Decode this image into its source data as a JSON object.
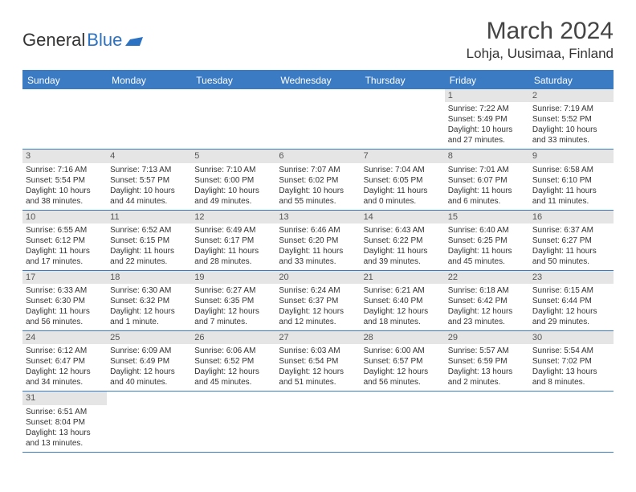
{
  "logo": {
    "general": "General",
    "blue": "Blue"
  },
  "title": "March 2024",
  "location": "Lohja, Uusimaa, Finland",
  "colors": {
    "header_bg": "#3b7bc4",
    "header_text": "#ffffff",
    "date_bg": "#e5e5e5",
    "border": "#3b7bc4",
    "logo_blue": "#2b72c2"
  },
  "day_headers": [
    "Sunday",
    "Monday",
    "Tuesday",
    "Wednesday",
    "Thursday",
    "Friday",
    "Saturday"
  ],
  "weeks": [
    [
      null,
      null,
      null,
      null,
      null,
      {
        "d": "1",
        "sr": "Sunrise: 7:22 AM",
        "ss": "Sunset: 5:49 PM",
        "dl": "Daylight: 10 hours and 27 minutes."
      },
      {
        "d": "2",
        "sr": "Sunrise: 7:19 AM",
        "ss": "Sunset: 5:52 PM",
        "dl": "Daylight: 10 hours and 33 minutes."
      }
    ],
    [
      {
        "d": "3",
        "sr": "Sunrise: 7:16 AM",
        "ss": "Sunset: 5:54 PM",
        "dl": "Daylight: 10 hours and 38 minutes."
      },
      {
        "d": "4",
        "sr": "Sunrise: 7:13 AM",
        "ss": "Sunset: 5:57 PM",
        "dl": "Daylight: 10 hours and 44 minutes."
      },
      {
        "d": "5",
        "sr": "Sunrise: 7:10 AM",
        "ss": "Sunset: 6:00 PM",
        "dl": "Daylight: 10 hours and 49 minutes."
      },
      {
        "d": "6",
        "sr": "Sunrise: 7:07 AM",
        "ss": "Sunset: 6:02 PM",
        "dl": "Daylight: 10 hours and 55 minutes."
      },
      {
        "d": "7",
        "sr": "Sunrise: 7:04 AM",
        "ss": "Sunset: 6:05 PM",
        "dl": "Daylight: 11 hours and 0 minutes."
      },
      {
        "d": "8",
        "sr": "Sunrise: 7:01 AM",
        "ss": "Sunset: 6:07 PM",
        "dl": "Daylight: 11 hours and 6 minutes."
      },
      {
        "d": "9",
        "sr": "Sunrise: 6:58 AM",
        "ss": "Sunset: 6:10 PM",
        "dl": "Daylight: 11 hours and 11 minutes."
      }
    ],
    [
      {
        "d": "10",
        "sr": "Sunrise: 6:55 AM",
        "ss": "Sunset: 6:12 PM",
        "dl": "Daylight: 11 hours and 17 minutes."
      },
      {
        "d": "11",
        "sr": "Sunrise: 6:52 AM",
        "ss": "Sunset: 6:15 PM",
        "dl": "Daylight: 11 hours and 22 minutes."
      },
      {
        "d": "12",
        "sr": "Sunrise: 6:49 AM",
        "ss": "Sunset: 6:17 PM",
        "dl": "Daylight: 11 hours and 28 minutes."
      },
      {
        "d": "13",
        "sr": "Sunrise: 6:46 AM",
        "ss": "Sunset: 6:20 PM",
        "dl": "Daylight: 11 hours and 33 minutes."
      },
      {
        "d": "14",
        "sr": "Sunrise: 6:43 AM",
        "ss": "Sunset: 6:22 PM",
        "dl": "Daylight: 11 hours and 39 minutes."
      },
      {
        "d": "15",
        "sr": "Sunrise: 6:40 AM",
        "ss": "Sunset: 6:25 PM",
        "dl": "Daylight: 11 hours and 45 minutes."
      },
      {
        "d": "16",
        "sr": "Sunrise: 6:37 AM",
        "ss": "Sunset: 6:27 PM",
        "dl": "Daylight: 11 hours and 50 minutes."
      }
    ],
    [
      {
        "d": "17",
        "sr": "Sunrise: 6:33 AM",
        "ss": "Sunset: 6:30 PM",
        "dl": "Daylight: 11 hours and 56 minutes."
      },
      {
        "d": "18",
        "sr": "Sunrise: 6:30 AM",
        "ss": "Sunset: 6:32 PM",
        "dl": "Daylight: 12 hours and 1 minute."
      },
      {
        "d": "19",
        "sr": "Sunrise: 6:27 AM",
        "ss": "Sunset: 6:35 PM",
        "dl": "Daylight: 12 hours and 7 minutes."
      },
      {
        "d": "20",
        "sr": "Sunrise: 6:24 AM",
        "ss": "Sunset: 6:37 PM",
        "dl": "Daylight: 12 hours and 12 minutes."
      },
      {
        "d": "21",
        "sr": "Sunrise: 6:21 AM",
        "ss": "Sunset: 6:40 PM",
        "dl": "Daylight: 12 hours and 18 minutes."
      },
      {
        "d": "22",
        "sr": "Sunrise: 6:18 AM",
        "ss": "Sunset: 6:42 PM",
        "dl": "Daylight: 12 hours and 23 minutes."
      },
      {
        "d": "23",
        "sr": "Sunrise: 6:15 AM",
        "ss": "Sunset: 6:44 PM",
        "dl": "Daylight: 12 hours and 29 minutes."
      }
    ],
    [
      {
        "d": "24",
        "sr": "Sunrise: 6:12 AM",
        "ss": "Sunset: 6:47 PM",
        "dl": "Daylight: 12 hours and 34 minutes."
      },
      {
        "d": "25",
        "sr": "Sunrise: 6:09 AM",
        "ss": "Sunset: 6:49 PM",
        "dl": "Daylight: 12 hours and 40 minutes."
      },
      {
        "d": "26",
        "sr": "Sunrise: 6:06 AM",
        "ss": "Sunset: 6:52 PM",
        "dl": "Daylight: 12 hours and 45 minutes."
      },
      {
        "d": "27",
        "sr": "Sunrise: 6:03 AM",
        "ss": "Sunset: 6:54 PM",
        "dl": "Daylight: 12 hours and 51 minutes."
      },
      {
        "d": "28",
        "sr": "Sunrise: 6:00 AM",
        "ss": "Sunset: 6:57 PM",
        "dl": "Daylight: 12 hours and 56 minutes."
      },
      {
        "d": "29",
        "sr": "Sunrise: 5:57 AM",
        "ss": "Sunset: 6:59 PM",
        "dl": "Daylight: 13 hours and 2 minutes."
      },
      {
        "d": "30",
        "sr": "Sunrise: 5:54 AM",
        "ss": "Sunset: 7:02 PM",
        "dl": "Daylight: 13 hours and 8 minutes."
      }
    ],
    [
      {
        "d": "31",
        "sr": "Sunrise: 6:51 AM",
        "ss": "Sunset: 8:04 PM",
        "dl": "Daylight: 13 hours and 13 minutes."
      },
      null,
      null,
      null,
      null,
      null,
      null
    ]
  ]
}
